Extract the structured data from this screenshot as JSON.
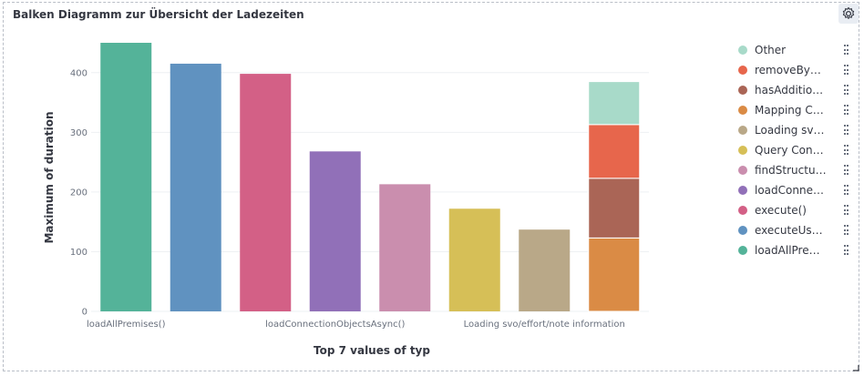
{
  "panel": {
    "title": "Balken Diagramm zur Übersicht der Ladezeiten"
  },
  "icons": {
    "settings": "gear-icon",
    "legend_menu": "kebab-icon",
    "resize": "resize-corner-icon"
  },
  "chart_data": {
    "type": "bar",
    "stacked_last": true,
    "xlabel": "Top 7 values of typ",
    "ylabel": "Maximum of duration",
    "ylim": [
      0,
      450
    ],
    "yticks": [
      0,
      100,
      200,
      300,
      400
    ],
    "xtick_labels": [
      "loadAllPremises()",
      "loadConnectionObjectsAsync()",
      "Loading svo/effort/note information"
    ],
    "legend_position": "right",
    "bars": [
      {
        "category": "loadAllPremises()",
        "value": 450,
        "color": "#54b399"
      },
      {
        "category": "executeUse…",
        "value": 415,
        "color": "#6092c0"
      },
      {
        "category": "execute()",
        "value": 398,
        "color": "#d36086"
      },
      {
        "category": "loadConnectionObjectsAsync()",
        "value": 268,
        "color": "#9170b8"
      },
      {
        "category": "findStructur…",
        "value": 213,
        "color": "#ca8eae"
      },
      {
        "category": "Query Cont…",
        "value": 172,
        "color": "#d6bf57"
      },
      {
        "category": "Loading svo/effort/note information",
        "value": 137,
        "color": "#b9a888"
      }
    ],
    "stacked_bar": {
      "category": "Other",
      "segments": [
        {
          "name": "Mapping C…",
          "value": 123,
          "color": "#da8b45"
        },
        {
          "name": "hasAddition…",
          "value": 100,
          "color": "#aa6556"
        },
        {
          "name": "removeByAl…",
          "value": 90,
          "color": "#e7664c"
        },
        {
          "name": "Other",
          "value": 72,
          "color": "#a8dac9"
        }
      ]
    }
  },
  "legend": [
    {
      "label": "Other",
      "color": "#a8dac9"
    },
    {
      "label": "removeByAl…",
      "color": "#e7664c"
    },
    {
      "label": "hasAddition…",
      "color": "#aa6556"
    },
    {
      "label": "Mapping C…",
      "color": "#da8b45"
    },
    {
      "label": "Loading sv…",
      "color": "#b9a888"
    },
    {
      "label": "Query Cont…",
      "color": "#d6bf57"
    },
    {
      "label": "findStructur…",
      "color": "#ca8eae"
    },
    {
      "label": "loadConnec…",
      "color": "#9170b8"
    },
    {
      "label": "execute()",
      "color": "#d36086"
    },
    {
      "label": "executeUse…",
      "color": "#6092c0"
    },
    {
      "label": "loadAllPrem…",
      "color": "#54b399"
    }
  ]
}
